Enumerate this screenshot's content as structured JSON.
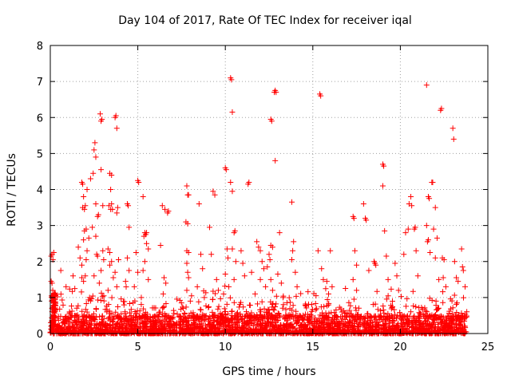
{
  "chart_data": {
    "type": "scatter",
    "title": "Day 104 of 2017, Rate Of TEC Index for receiver iqal",
    "xlabel": "GPS time / hours",
    "ylabel": "ROTI / TECUs",
    "xlim": [
      0,
      25
    ],
    "ylim": [
      0,
      8
    ],
    "x_ticks": [
      "0",
      "5",
      "10",
      "15",
      "20",
      "25"
    ],
    "y_ticks": [
      "0",
      "1",
      "2",
      "3",
      "4",
      "5",
      "6",
      "7",
      "8"
    ],
    "grid": true,
    "marker": "+",
    "color": "#ff0000",
    "series": [
      {
        "name": "ROTI",
        "points": [
          [
            0.05,
            2.15
          ],
          [
            0.1,
            2.2
          ],
          [
            0.15,
            2.05
          ],
          [
            0.2,
            2.25
          ],
          [
            0.05,
            1.45
          ],
          [
            0.1,
            1.4
          ],
          [
            0.15,
            0.9
          ],
          [
            0.1,
            0.7
          ],
          [
            0.2,
            0.5
          ],
          [
            0.05,
            0.3
          ],
          [
            0.25,
            1.1
          ],
          [
            0.6,
            1.75
          ],
          [
            0.9,
            1.3
          ],
          [
            1.1,
            0.6
          ],
          [
            1.3,
            1.6
          ],
          [
            1.4,
            1.25
          ],
          [
            1.6,
            2.4
          ],
          [
            1.7,
            2.1
          ],
          [
            1.8,
            1.9
          ],
          [
            1.8,
            1.55
          ],
          [
            1.9,
            1.45
          ],
          [
            2.0,
            1.6
          ],
          [
            1.8,
            4.2
          ],
          [
            1.85,
            4.15
          ],
          [
            1.9,
            3.8
          ],
          [
            1.85,
            3.5
          ],
          [
            1.95,
            3.45
          ],
          [
            2.0,
            3.55
          ],
          [
            2.05,
            2.9
          ],
          [
            1.95,
            2.85
          ],
          [
            1.9,
            2.6
          ],
          [
            2.1,
            2.3
          ],
          [
            2.05,
            2.05
          ],
          [
            2.1,
            4.0
          ],
          [
            2.2,
            2.65
          ],
          [
            2.3,
            4.3
          ],
          [
            2.45,
            4.45
          ],
          [
            2.5,
            5.1
          ],
          [
            2.55,
            5.3
          ],
          [
            2.6,
            4.9
          ],
          [
            2.6,
            3.6
          ],
          [
            2.7,
            3.25
          ],
          [
            2.75,
            3.3
          ],
          [
            2.4,
            2.95
          ],
          [
            2.6,
            2.7
          ],
          [
            2.65,
            2.2
          ],
          [
            2.7,
            2.15
          ],
          [
            2.5,
            1.6
          ],
          [
            2.8,
            1.4
          ],
          [
            2.85,
            6.1
          ],
          [
            2.9,
            5.9
          ],
          [
            2.95,
            5.95
          ],
          [
            2.9,
            4.55
          ],
          [
            3.0,
            3.55
          ],
          [
            3.0,
            2.3
          ],
          [
            3.05,
            2.05
          ],
          [
            2.9,
            1.75
          ],
          [
            3.4,
            4.45
          ],
          [
            3.5,
            4.4
          ],
          [
            3.45,
            4.0
          ],
          [
            3.35,
            3.55
          ],
          [
            3.45,
            3.45
          ],
          [
            3.5,
            3.6
          ],
          [
            3.55,
            3.45
          ],
          [
            3.3,
            2.35
          ],
          [
            3.4,
            2.25
          ],
          [
            3.5,
            2.0
          ],
          [
            3.4,
            1.9
          ],
          [
            3.6,
            1.55
          ],
          [
            3.3,
            1.2
          ],
          [
            3.7,
            6.0
          ],
          [
            3.75,
            6.05
          ],
          [
            3.8,
            5.7
          ],
          [
            3.8,
            3.35
          ],
          [
            3.85,
            3.5
          ],
          [
            3.9,
            2.05
          ],
          [
            3.7,
            1.7
          ],
          [
            3.8,
            1.3
          ],
          [
            4.4,
            3.6
          ],
          [
            4.45,
            3.55
          ],
          [
            4.5,
            2.95
          ],
          [
            4.4,
            2.1
          ],
          [
            4.5,
            1.75
          ],
          [
            4.3,
            1.45
          ],
          [
            5.0,
            4.25
          ],
          [
            5.05,
            4.2
          ],
          [
            4.9,
            2.25
          ],
          [
            5.0,
            1.7
          ],
          [
            4.8,
            1.3
          ],
          [
            5.2,
            1.0
          ],
          [
            5.3,
            3.8
          ],
          [
            5.4,
            2.8
          ],
          [
            5.45,
            2.75
          ],
          [
            5.35,
            2.7
          ],
          [
            5.5,
            2.8
          ],
          [
            5.5,
            2.5
          ],
          [
            5.6,
            2.35
          ],
          [
            5.4,
            2.0
          ],
          [
            5.3,
            1.75
          ],
          [
            5.6,
            1.5
          ],
          [
            6.3,
            2.45
          ],
          [
            6.5,
            1.55
          ],
          [
            6.6,
            1.4
          ],
          [
            6.45,
            1.1
          ],
          [
            6.4,
            3.55
          ],
          [
            6.55,
            3.45
          ],
          [
            6.7,
            3.35
          ],
          [
            6.75,
            3.4
          ],
          [
            7.8,
            4.1
          ],
          [
            7.85,
            3.85
          ],
          [
            7.9,
            3.85
          ],
          [
            7.75,
            3.1
          ],
          [
            7.85,
            3.05
          ],
          [
            7.8,
            2.3
          ],
          [
            7.9,
            2.25
          ],
          [
            7.8,
            1.95
          ],
          [
            7.85,
            1.7
          ],
          [
            7.9,
            1.55
          ],
          [
            7.8,
            1.2
          ],
          [
            8.0,
            0.9
          ],
          [
            8.5,
            3.6
          ],
          [
            8.6,
            2.2
          ],
          [
            8.7,
            1.8
          ],
          [
            8.4,
            1.3
          ],
          [
            8.8,
            1.0
          ],
          [
            9.1,
            2.95
          ],
          [
            9.3,
            3.95
          ],
          [
            9.4,
            3.85
          ],
          [
            9.2,
            2.2
          ],
          [
            9.5,
            1.5
          ],
          [
            9.6,
            1.2
          ],
          [
            10.0,
            4.6
          ],
          [
            10.05,
            4.55
          ],
          [
            10.1,
            2.35
          ],
          [
            10.15,
            2.1
          ],
          [
            10.0,
            1.65
          ],
          [
            10.2,
            1.3
          ],
          [
            9.9,
            1.1
          ],
          [
            10.3,
            7.1
          ],
          [
            10.35,
            7.05
          ],
          [
            10.4,
            6.15
          ],
          [
            10.3,
            4.2
          ],
          [
            10.4,
            3.95
          ],
          [
            10.5,
            2.8
          ],
          [
            10.55,
            2.85
          ],
          [
            10.4,
            2.35
          ],
          [
            10.6,
            2.0
          ],
          [
            10.5,
            1.5
          ],
          [
            10.9,
            2.3
          ],
          [
            11.0,
            1.95
          ],
          [
            11.1,
            1.6
          ],
          [
            11.3,
            4.15
          ],
          [
            11.35,
            4.2
          ],
          [
            11.5,
            1.7
          ],
          [
            11.8,
            2.55
          ],
          [
            11.9,
            2.4
          ],
          [
            12.0,
            2.3
          ],
          [
            12.1,
            2.0
          ],
          [
            12.2,
            1.8
          ],
          [
            12.0,
            1.5
          ],
          [
            12.3,
            1.3
          ],
          [
            11.7,
            1.1
          ],
          [
            12.6,
            2.45
          ],
          [
            12.7,
            2.4
          ],
          [
            12.5,
            2.2
          ],
          [
            12.55,
            2.05
          ],
          [
            12.4,
            1.85
          ],
          [
            12.6,
            1.5
          ],
          [
            12.7,
            1.2
          ],
          [
            12.6,
            5.95
          ],
          [
            12.65,
            5.9
          ],
          [
            12.8,
            6.7
          ],
          [
            12.85,
            6.75
          ],
          [
            12.9,
            6.7
          ],
          [
            12.85,
            4.8
          ],
          [
            13.1,
            2.8
          ],
          [
            13.0,
            1.65
          ],
          [
            13.2,
            1.4
          ],
          [
            13.3,
            1.0
          ],
          [
            13.8,
            3.65
          ],
          [
            13.9,
            2.55
          ],
          [
            13.85,
            2.3
          ],
          [
            13.8,
            2.05
          ],
          [
            14.0,
            1.7
          ],
          [
            14.1,
            1.3
          ],
          [
            15.4,
            6.65
          ],
          [
            15.45,
            6.6
          ],
          [
            15.3,
            2.3
          ],
          [
            15.5,
            1.8
          ],
          [
            15.6,
            1.5
          ],
          [
            15.8,
            1.45
          ],
          [
            16.0,
            2.3
          ],
          [
            16.1,
            1.3
          ],
          [
            15.9,
            1.1
          ],
          [
            17.3,
            3.25
          ],
          [
            17.35,
            3.2
          ],
          [
            17.4,
            2.3
          ],
          [
            17.5,
            1.9
          ],
          [
            17.3,
            1.5
          ],
          [
            17.5,
            1.2
          ],
          [
            17.9,
            3.6
          ],
          [
            18.0,
            3.2
          ],
          [
            18.05,
            3.15
          ],
          [
            18.2,
            1.75
          ],
          [
            18.5,
            2.0
          ],
          [
            18.55,
            1.95
          ],
          [
            18.6,
            1.9
          ],
          [
            19.0,
            4.7
          ],
          [
            19.05,
            4.65
          ],
          [
            19.0,
            4.1
          ],
          [
            19.1,
            2.85
          ],
          [
            19.2,
            2.15
          ],
          [
            19.3,
            1.5
          ],
          [
            19.7,
            1.95
          ],
          [
            19.8,
            1.6
          ],
          [
            19.9,
            1.2
          ],
          [
            20.2,
            2.2
          ],
          [
            20.3,
            2.8
          ],
          [
            20.45,
            2.9
          ],
          [
            20.5,
            3.6
          ],
          [
            20.6,
            3.8
          ],
          [
            20.65,
            3.55
          ],
          [
            20.8,
            2.9
          ],
          [
            20.85,
            2.95
          ],
          [
            20.9,
            2.3
          ],
          [
            21.0,
            1.6
          ],
          [
            21.5,
            6.9
          ],
          [
            21.6,
            3.8
          ],
          [
            21.65,
            3.75
          ],
          [
            21.5,
            3.0
          ],
          [
            21.6,
            2.6
          ],
          [
            21.55,
            2.55
          ],
          [
            21.7,
            2.25
          ],
          [
            21.8,
            4.2
          ],
          [
            21.85,
            4.2
          ],
          [
            22.0,
            3.5
          ],
          [
            21.9,
            2.9
          ],
          [
            22.1,
            2.65
          ],
          [
            22.0,
            2.1
          ],
          [
            22.2,
            1.5
          ],
          [
            22.3,
            6.2
          ],
          [
            22.35,
            6.25
          ],
          [
            22.4,
            2.1
          ],
          [
            22.5,
            2.05
          ],
          [
            22.45,
            1.55
          ],
          [
            22.6,
            1.3
          ],
          [
            23.0,
            5.7
          ],
          [
            23.05,
            5.4
          ],
          [
            23.1,
            2.0
          ],
          [
            23.2,
            1.55
          ],
          [
            23.3,
            1.45
          ],
          [
            23.5,
            2.35
          ],
          [
            23.55,
            1.85
          ],
          [
            23.6,
            1.75
          ],
          [
            23.7,
            1.3
          ]
        ]
      }
    ],
    "baseline_band": {
      "note": "dense cluster of points between ROTI 0 and about 0.5 across the whole day",
      "x_range": [
        0,
        23.8
      ],
      "y_range": [
        0,
        0.5
      ]
    }
  }
}
